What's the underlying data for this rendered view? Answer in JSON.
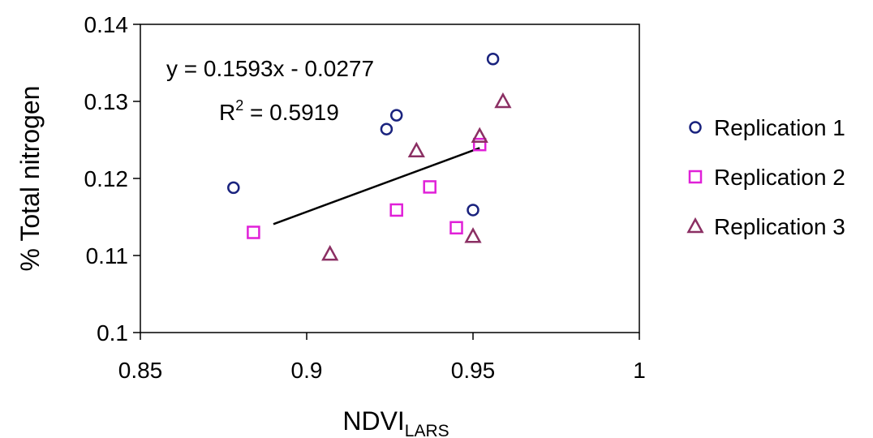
{
  "chart_data": {
    "type": "scatter",
    "xlabel": "NDVI",
    "xlabel_sub": "LARS",
    "ylabel": "% Total nitrogen",
    "xlim": [
      0.85,
      1.0
    ],
    "ylim": [
      0.1,
      0.14
    ],
    "x_ticks": [
      "0.85",
      "0.9",
      "0.95",
      "1"
    ],
    "y_ticks": [
      "0.1",
      "0.11",
      "0.12",
      "0.13",
      "0.14"
    ],
    "grid": false,
    "legend_position": "right",
    "series": [
      {
        "name": "Replication 1",
        "marker": "circle",
        "color": "#1a237e",
        "points": [
          {
            "x": 0.878,
            "y": 0.1188
          },
          {
            "x": 0.924,
            "y": 0.1264
          },
          {
            "x": 0.927,
            "y": 0.1282
          },
          {
            "x": 0.95,
            "y": 0.1159
          },
          {
            "x": 0.956,
            "y": 0.1355
          }
        ]
      },
      {
        "name": "Replication 2",
        "marker": "square",
        "color": "#e020d8",
        "points": [
          {
            "x": 0.884,
            "y": 0.113
          },
          {
            "x": 0.927,
            "y": 0.1159
          },
          {
            "x": 0.937,
            "y": 0.1189
          },
          {
            "x": 0.945,
            "y": 0.1136
          },
          {
            "x": 0.952,
            "y": 0.1244
          }
        ]
      },
      {
        "name": "Replication 3",
        "marker": "triangle",
        "color": "#8b2f63",
        "points": [
          {
            "x": 0.907,
            "y": 0.1102
          },
          {
            "x": 0.933,
            "y": 0.1236
          },
          {
            "x": 0.95,
            "y": 0.1125
          },
          {
            "x": 0.952,
            "y": 0.1255
          },
          {
            "x": 0.959,
            "y": 0.13
          }
        ]
      }
    ],
    "trendline": {
      "slope": 0.1593,
      "intercept": -0.0277,
      "x_range": [
        0.89,
        0.952
      ],
      "equation": "y = 0.1593x - 0.0277",
      "r2_label": "R",
      "r2_sup": "2",
      "r2_value": " = 0.5919"
    }
  }
}
